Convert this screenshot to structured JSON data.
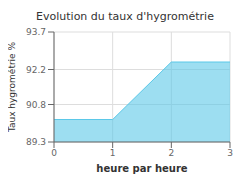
{
  "chart_data": {
    "type": "area",
    "title": "Evolution du taux d'hygrométrie",
    "x_label": "heure par heure",
    "y_label": "Taux hygrométrie %",
    "x": [
      0,
      1,
      2,
      3
    ],
    "series": [
      {
        "name": "Taux hygrométrie %",
        "color": "#5bc8e8",
        "values": [
          90.2,
          90.2,
          92.5,
          92.5
        ]
      }
    ],
    "xlim": [
      0,
      3
    ],
    "ylim": [
      89.3,
      93.7
    ],
    "xticks": [
      0,
      1,
      2,
      3
    ],
    "yticks": [
      89.3,
      90.8,
      92.2,
      93.7
    ],
    "grid": true
  }
}
